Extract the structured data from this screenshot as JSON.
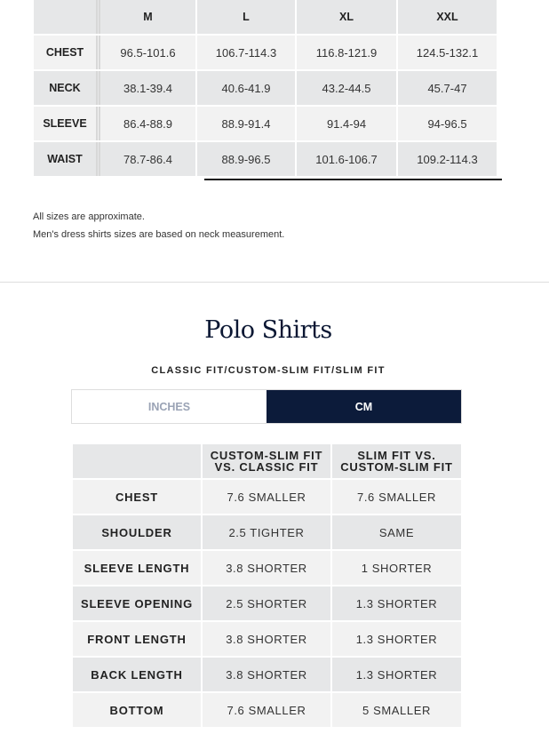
{
  "size_table": {
    "columns": [
      "",
      "M",
      "L",
      "XL",
      "XXL"
    ],
    "rows": [
      {
        "label": "CHEST",
        "values": [
          "96.5-101.6",
          "106.7-114.3",
          "116.8-121.9",
          "124.5-132.1"
        ]
      },
      {
        "label": "NECK",
        "values": [
          "38.1-39.4",
          "40.6-41.9",
          "43.2-44.5",
          "45.7-47"
        ]
      },
      {
        "label": "SLEEVE",
        "values": [
          "86.4-88.9",
          "88.9-91.4",
          "91.4-94",
          "94-96.5"
        ]
      },
      {
        "label": "WAIST",
        "values": [
          "78.7-86.4",
          "88.9-96.5",
          "101.6-106.7",
          "109.2-114.3"
        ]
      }
    ]
  },
  "notes": [
    "All sizes are approximate.",
    "Men's dress shirts sizes are based on neck measurement."
  ],
  "polo": {
    "title": "Polo Shirts",
    "subtitle": "CLASSIC FIT/CUSTOM-SLIM FIT/SLIM FIT",
    "units": {
      "inches": "INCHES",
      "cm": "CM",
      "selected": "CM"
    },
    "columns": [
      "",
      "CUSTOM-SLIM FIT VS. CLASSIC FIT",
      "SLIM FIT VS. CUSTOM-SLIM FIT"
    ],
    "rows": [
      {
        "label": "CHEST",
        "values": [
          "7.6 SMALLER",
          "7.6 SMALLER"
        ]
      },
      {
        "label": "SHOULDER",
        "values": [
          "2.5 TIGHTER",
          "SAME"
        ]
      },
      {
        "label": "SLEEVE LENGTH",
        "values": [
          "3.8 SHORTER",
          "1 SHORTER"
        ]
      },
      {
        "label": "SLEEVE OPENING",
        "values": [
          "2.5 SHORTER",
          "1.3 SHORTER"
        ]
      },
      {
        "label": "FRONT LENGTH",
        "values": [
          "3.8 SHORTER",
          "1.3 SHORTER"
        ]
      },
      {
        "label": "BACK LENGTH",
        "values": [
          "3.8 SHORTER",
          "1.3 SHORTER"
        ]
      },
      {
        "label": "BOTTOM",
        "values": [
          "7.6 SMALLER",
          "5 SMALLER"
        ]
      }
    ]
  },
  "colors": {
    "accent": "#0c1b3a",
    "cell_dark": "#e6e7e8",
    "cell_light": "#f2f2f2"
  }
}
